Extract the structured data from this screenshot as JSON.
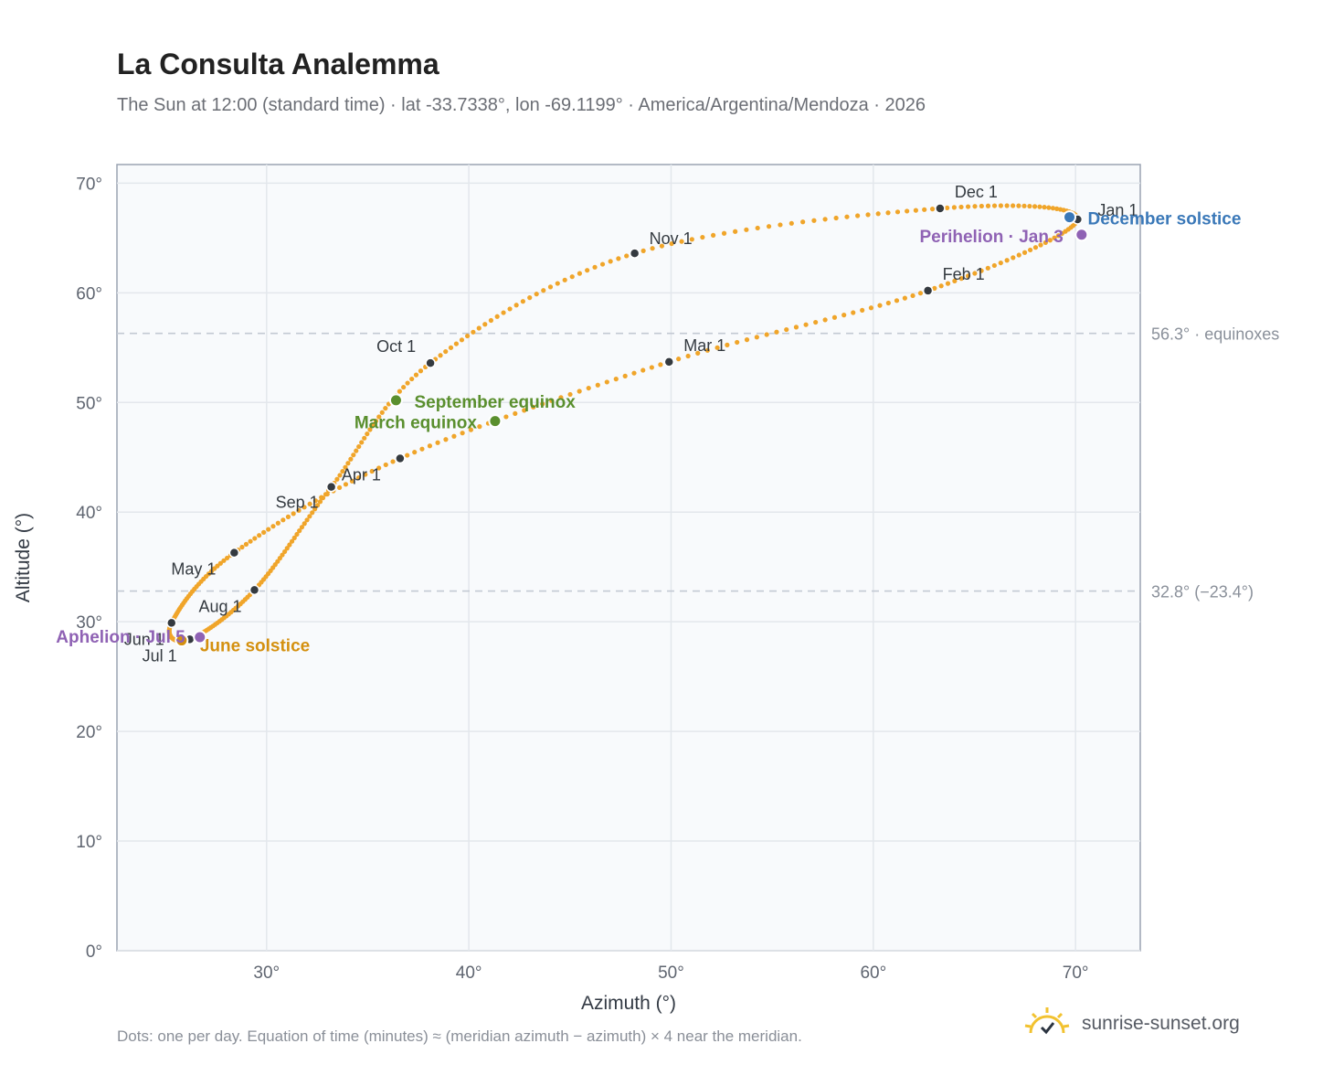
{
  "title": "La Consulta Analemma",
  "subtitle": "The Sun at 12:00 (standard time) · lat -33.7338°, lon -69.1199° · America/Argentina/Mendoza · 2026",
  "footnote": "Dots: one per day. Equation of time (minutes) ≈ (meridian azimuth − azimuth) × 4 near the meridian.",
  "brand": {
    "name": "sunrise-sunset.org",
    "icon": "sun-logo-icon"
  },
  "colors": {
    "curve": "#f0a52a",
    "month_marker": "#343a40",
    "equinox": "#5a8f2e",
    "june_solstice": "#d4900f",
    "december_solstice": "#3a78b8",
    "apsis": "#8f62b4",
    "reference_line": "#c3c9d3",
    "plot_bg": "#f8fafc",
    "grid": "#e3e7ec"
  },
  "chart_data": {
    "type": "scatter",
    "title": "La Consulta Analemma",
    "subtitle": "The Sun at 12:00 (standard time) · lat -33.7338°, lon -69.1199° · America/Argentina/Mendoza · 2026",
    "xlabel": "Azimuth (°)",
    "ylabel": "Altitude (°)",
    "xlim": [
      22.6,
      73.2
    ],
    "ylim": [
      0,
      71.7
    ],
    "x_ticks": [
      30,
      40,
      50,
      60,
      70
    ],
    "y_ticks": [
      0,
      10,
      20,
      30,
      40,
      50,
      60,
      70
    ],
    "x_tick_labels": [
      "30°",
      "40°",
      "50°",
      "60°",
      "70°"
    ],
    "y_tick_labels": [
      "0°",
      "10°",
      "20°",
      "30°",
      "40°",
      "50°",
      "60°",
      "70°"
    ],
    "grid": true,
    "month_points": [
      {
        "label": "Jan 1",
        "az": 70.1,
        "alt": 66.7
      },
      {
        "label": "Feb 1",
        "az": 62.7,
        "alt": 60.2
      },
      {
        "label": "Mar 1",
        "az": 49.9,
        "alt": 53.7
      },
      {
        "label": "Apr 1",
        "az": 36.6,
        "alt": 44.9
      },
      {
        "label": "May 1",
        "az": 28.4,
        "alt": 36.3
      },
      {
        "label": "Jun 1",
        "az": 25.3,
        "alt": 29.9
      },
      {
        "label": "Jul 1",
        "az": 26.2,
        "alt": 28.4
      },
      {
        "label": "Aug 1",
        "az": 29.4,
        "alt": 32.9
      },
      {
        "label": "Sep 1",
        "az": 33.2,
        "alt": 42.3
      },
      {
        "label": "Oct 1",
        "az": 38.1,
        "alt": 53.6
      },
      {
        "label": "Nov 1",
        "az": 48.2,
        "alt": 63.6
      },
      {
        "label": "Dec 1",
        "az": 63.3,
        "alt": 67.7
      }
    ],
    "events": [
      {
        "label": "March equinox",
        "az": 41.3,
        "alt": 48.3,
        "kind": "equinox"
      },
      {
        "label": "September equinox",
        "az": 36.4,
        "alt": 50.2,
        "kind": "equinox"
      },
      {
        "label": "June solstice",
        "az": 25.8,
        "alt": 28.3,
        "kind": "june_solstice"
      },
      {
        "label": "December solstice",
        "az": 69.7,
        "alt": 66.9,
        "kind": "december_solstice"
      },
      {
        "label": "Aphelion · Jul 5",
        "az": 26.7,
        "alt": 28.6,
        "kind": "apsis"
      },
      {
        "label": "Perihelion · Jan 3",
        "az": 70.3,
        "alt": 65.3,
        "kind": "apsis"
      }
    ],
    "reference_lines": [
      {
        "alt": 56.3,
        "label": "56.3° · equinoxes"
      },
      {
        "alt": 32.8,
        "label": "32.8° (−23.4°)"
      }
    ],
    "series": [
      {
        "name": "",
        "description_points": "daily positions (one per day)"
      }
    ]
  }
}
